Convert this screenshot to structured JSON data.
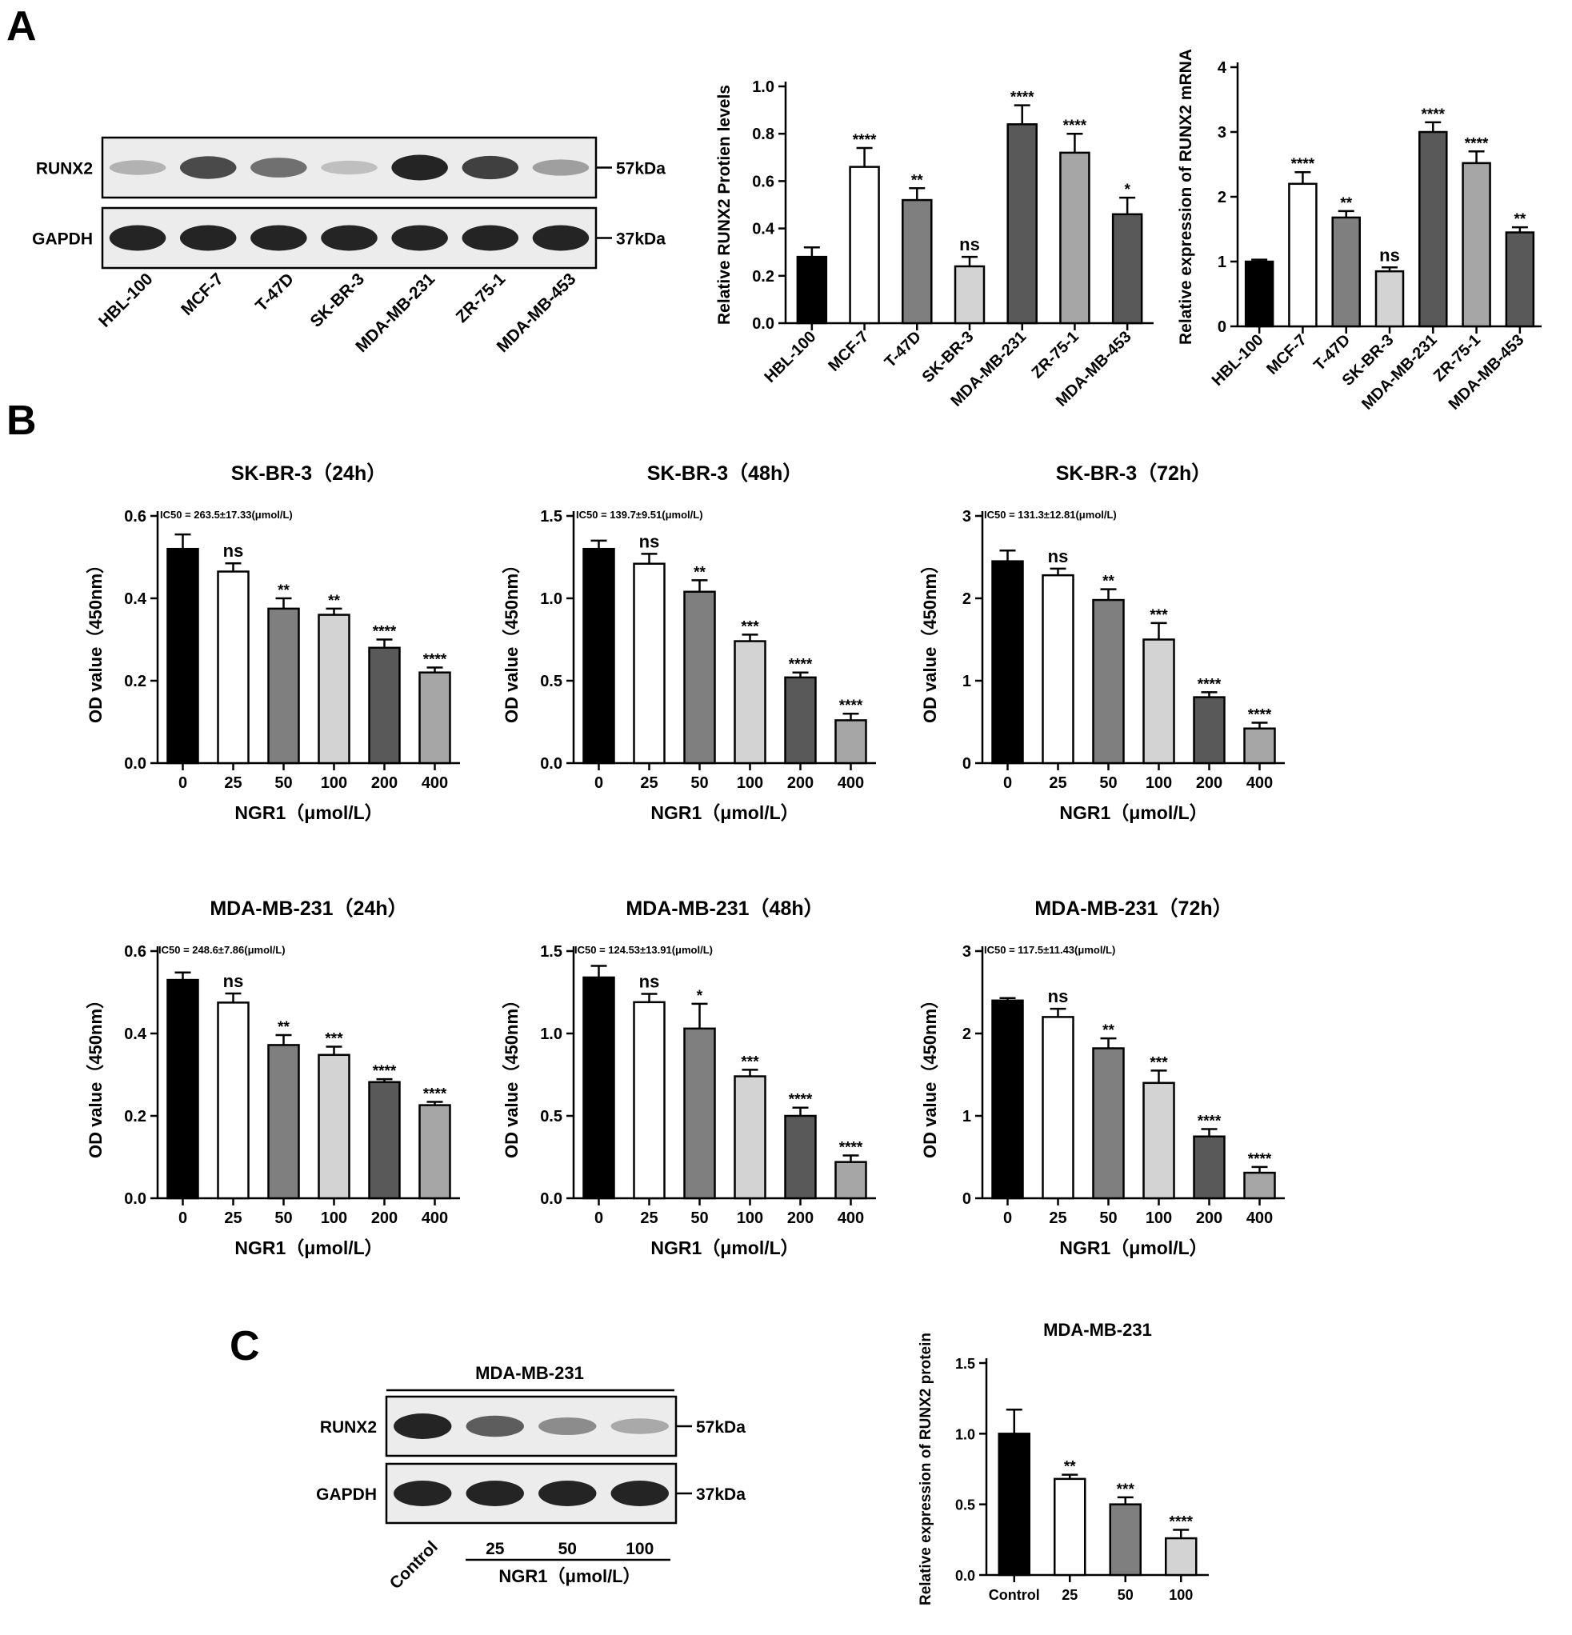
{
  "panel_labels": {
    "a": "A",
    "b": "B",
    "c": "C"
  },
  "blot_a": {
    "rows": [
      "RUNX2",
      "GAPDH"
    ],
    "sizes": [
      "57kDa",
      "37kDa"
    ],
    "lanes": [
      "HBL-100",
      "MCF-7",
      "T-47D",
      "SK-BR-3",
      "MDA-MB-231",
      "ZR-75-1",
      "MDA-MB-453"
    ],
    "runx2_intensity": [
      0.25,
      0.8,
      0.6,
      0.18,
      1.0,
      0.85,
      0.35
    ],
    "gapdh_intensity": [
      1,
      1,
      1,
      1,
      1,
      1,
      1
    ]
  },
  "blot_c": {
    "title": "MDA-MB-231",
    "rows": [
      "RUNX2",
      "GAPDH"
    ],
    "sizes": [
      "57kDa",
      "37kDa"
    ],
    "lanes": [
      "Control",
      "25",
      "50",
      "100"
    ],
    "group_label": "NGR1（μmol/L）",
    "runx2_intensity": [
      1.0,
      0.7,
      0.45,
      0.3
    ],
    "gapdh_intensity": [
      1,
      1,
      1,
      1
    ]
  },
  "colors": {
    "black": "#000000",
    "white": "#ffffff",
    "gray_mid": "#7f7f7f",
    "gray_light": "#d3d3d3",
    "gray_dark": "#595959",
    "gray_silver": "#a6a6a6"
  },
  "chart_data": [
    {
      "id": "a_protein",
      "type": "bar",
      "title": "",
      "xlabel": "",
      "ylabel": "Relative RUNX2 Protien levels",
      "categories": [
        "HBL-100",
        "MCF-7",
        "T-47D",
        "SK-BR-3",
        "MDA-MB-231",
        "ZR-75-1",
        "MDA-MB-453"
      ],
      "values": [
        0.28,
        0.66,
        0.52,
        0.24,
        0.84,
        0.72,
        0.46
      ],
      "errors": [
        0.04,
        0.08,
        0.05,
        0.04,
        0.08,
        0.08,
        0.07
      ],
      "significance": [
        "",
        "****",
        "**",
        "ns",
        "****",
        "****",
        "*"
      ],
      "fills": [
        "black",
        "white",
        "gray_mid",
        "gray_light",
        "gray_dark",
        "gray_silver",
        "gray_dark"
      ],
      "ylim": [
        0,
        1.0
      ],
      "yticks": [
        0.0,
        0.2,
        0.4,
        0.6,
        0.8,
        1.0
      ],
      "ytick_labels": [
        "0.0",
        "0.2",
        "0.4",
        "0.6",
        "0.8",
        "1.0"
      ],
      "xtick_rotation": -45
    },
    {
      "id": "a_mrna",
      "type": "bar",
      "title": "",
      "xlabel": "",
      "ylabel": "Relative expression of RUNX2 mRNA",
      "categories": [
        "HBL-100",
        "MCF-7",
        "T-47D",
        "SK-BR-3",
        "MDA-MB-231",
        "ZR-75-1",
        "MDA-MB-453"
      ],
      "values": [
        1.0,
        2.2,
        1.68,
        0.85,
        3.0,
        2.52,
        1.45
      ],
      "errors": [
        0.03,
        0.18,
        0.1,
        0.06,
        0.15,
        0.18,
        0.08
      ],
      "significance": [
        "",
        "****",
        "**",
        "ns",
        "****",
        "****",
        "**"
      ],
      "fills": [
        "black",
        "white",
        "gray_mid",
        "gray_light",
        "gray_dark",
        "gray_silver",
        "gray_dark"
      ],
      "ylim": [
        0,
        4
      ],
      "yticks": [
        0,
        1,
        2,
        3,
        4
      ],
      "ytick_labels": [
        "0",
        "1",
        "2",
        "3",
        "4"
      ],
      "xtick_rotation": -45
    },
    {
      "id": "b_skbr3_24",
      "type": "bar",
      "title": "SK-BR-3（24h）",
      "annotation": "IC50 = 263.5±17.33(μmol/L)",
      "xlabel": "NGR1（μmol/L）",
      "ylabel": "OD value（450nm）",
      "categories": [
        "0",
        "25",
        "50",
        "100",
        "200",
        "400"
      ],
      "values": [
        0.52,
        0.465,
        0.375,
        0.36,
        0.28,
        0.22
      ],
      "errors": [
        0.035,
        0.02,
        0.025,
        0.015,
        0.02,
        0.012
      ],
      "significance": [
        "",
        "ns",
        "**",
        "**",
        "****",
        "****"
      ],
      "fills": [
        "black",
        "white",
        "gray_mid",
        "gray_light",
        "gray_dark",
        "gray_silver"
      ],
      "ylim": [
        0,
        0.6
      ],
      "yticks": [
        0.0,
        0.2,
        0.4,
        0.6
      ],
      "ytick_labels": [
        "0.0",
        "0.2",
        "0.4",
        "0.6"
      ]
    },
    {
      "id": "b_skbr3_48",
      "type": "bar",
      "title": "SK-BR-3（48h）",
      "annotation": "IC50 = 139.7±9.51(μmol/L)",
      "xlabel": "NGR1（μmol/L）",
      "ylabel": "OD value（450nm）",
      "categories": [
        "0",
        "25",
        "50",
        "100",
        "200",
        "400"
      ],
      "values": [
        1.3,
        1.21,
        1.04,
        0.74,
        0.52,
        0.26
      ],
      "errors": [
        0.05,
        0.06,
        0.07,
        0.04,
        0.03,
        0.04
      ],
      "significance": [
        "",
        "ns",
        "**",
        "***",
        "****",
        "****"
      ],
      "fills": [
        "black",
        "white",
        "gray_mid",
        "gray_light",
        "gray_dark",
        "gray_silver"
      ],
      "ylim": [
        0,
        1.5
      ],
      "yticks": [
        0.0,
        0.5,
        1.0,
        1.5
      ],
      "ytick_labels": [
        "0.0",
        "0.5",
        "1.0",
        "1.5"
      ]
    },
    {
      "id": "b_skbr3_72",
      "type": "bar",
      "title": "SK-BR-3（72h）",
      "annotation": "IC50 = 131.3±12.81(μmol/L)",
      "xlabel": "NGR1（μmol/L）",
      "ylabel": "OD value（450nm）",
      "categories": [
        "0",
        "25",
        "50",
        "100",
        "200",
        "400"
      ],
      "values": [
        2.45,
        2.28,
        1.98,
        1.5,
        0.8,
        0.42
      ],
      "errors": [
        0.13,
        0.08,
        0.13,
        0.2,
        0.06,
        0.07
      ],
      "significance": [
        "",
        "ns",
        "**",
        "***",
        "****",
        "****"
      ],
      "fills": [
        "black",
        "white",
        "gray_mid",
        "gray_light",
        "gray_dark",
        "gray_silver"
      ],
      "ylim": [
        0,
        3
      ],
      "yticks": [
        0,
        1,
        2,
        3
      ],
      "ytick_labels": [
        "0",
        "1",
        "2",
        "3"
      ]
    },
    {
      "id": "b_mda_24",
      "type": "bar",
      "title": "MDA-MB-231（24h）",
      "annotation": "IC50 = 248.6±7.86(μmol/L)",
      "xlabel": "NGR1（μmol/L）",
      "ylabel": "OD value（450nm）",
      "categories": [
        "0",
        "25",
        "50",
        "100",
        "200",
        "400"
      ],
      "values": [
        0.53,
        0.475,
        0.372,
        0.348,
        0.282,
        0.226
      ],
      "errors": [
        0.018,
        0.022,
        0.024,
        0.02,
        0.007,
        0.008
      ],
      "significance": [
        "",
        "ns",
        "**",
        "***",
        "****",
        "****"
      ],
      "fills": [
        "black",
        "white",
        "gray_mid",
        "gray_light",
        "gray_dark",
        "gray_silver"
      ],
      "ylim": [
        0,
        0.6
      ],
      "yticks": [
        0.0,
        0.2,
        0.4,
        0.6
      ],
      "ytick_labels": [
        "0.0",
        "0.2",
        "0.4",
        "0.6"
      ]
    },
    {
      "id": "b_mda_48",
      "type": "bar",
      "title": "MDA-MB-231（48h）",
      "annotation": "IC50 = 124.53±13.91(μmol/L)",
      "xlabel": "NGR1（μmol/L）",
      "ylabel": "OD value（450nm）",
      "categories": [
        "0",
        "25",
        "50",
        "100",
        "200",
        "400"
      ],
      "values": [
        1.34,
        1.19,
        1.03,
        0.74,
        0.5,
        0.22
      ],
      "errors": [
        0.07,
        0.05,
        0.15,
        0.04,
        0.05,
        0.04
      ],
      "significance": [
        "",
        "ns",
        "*",
        "***",
        "****",
        "****"
      ],
      "fills": [
        "black",
        "white",
        "gray_mid",
        "gray_light",
        "gray_dark",
        "gray_silver"
      ],
      "ylim": [
        0,
        1.5
      ],
      "yticks": [
        0.0,
        0.5,
        1.0,
        1.5
      ],
      "ytick_labels": [
        "0.0",
        "0.5",
        "1.0",
        "1.5"
      ]
    },
    {
      "id": "b_mda_72",
      "type": "bar",
      "title": "MDA-MB-231（72h）",
      "annotation": "IC50 = 117.5±11.43(μmol/L)",
      "xlabel": "NGR1（μmol/L）",
      "ylabel": "OD value（450nm）",
      "categories": [
        "0",
        "25",
        "50",
        "100",
        "200",
        "400"
      ],
      "values": [
        2.4,
        2.2,
        1.82,
        1.4,
        0.75,
        0.31
      ],
      "errors": [
        0.03,
        0.1,
        0.12,
        0.15,
        0.09,
        0.07
      ],
      "significance": [
        "",
        "ns",
        "**",
        "***",
        "****",
        "****"
      ],
      "fills": [
        "black",
        "white",
        "gray_mid",
        "gray_light",
        "gray_dark",
        "gray_silver"
      ],
      "ylim": [
        0,
        3
      ],
      "yticks": [
        0,
        1,
        2,
        3
      ],
      "ytick_labels": [
        "0",
        "1",
        "2",
        "3"
      ]
    },
    {
      "id": "c_quant",
      "type": "bar",
      "title": "MDA-MB-231",
      "xlabel": "",
      "ylabel": "Relative expression of RUNX2 protein",
      "categories": [
        "Control",
        "25",
        "50",
        "100"
      ],
      "values": [
        1.0,
        0.68,
        0.5,
        0.26
      ],
      "errors": [
        0.17,
        0.03,
        0.05,
        0.06
      ],
      "significance": [
        "",
        "**",
        "***",
        "****"
      ],
      "fills": [
        "black",
        "white",
        "gray_mid",
        "gray_light"
      ],
      "ylim": [
        0,
        1.5
      ],
      "yticks": [
        0.0,
        0.5,
        1.0,
        1.5
      ],
      "ytick_labels": [
        "0.0",
        "0.5",
        "1.0",
        "1.5"
      ]
    }
  ]
}
